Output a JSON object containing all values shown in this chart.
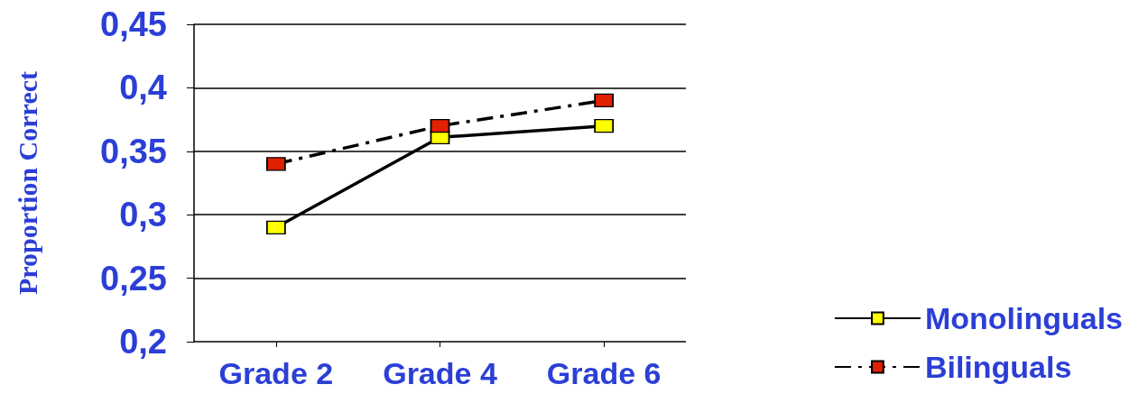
{
  "chart_data": {
    "type": "line",
    "ylabel": "Proportion Correct",
    "categories": [
      "Grade 2",
      "Grade 4",
      "Grade 6"
    ],
    "series": [
      {
        "name": "Monolinguals",
        "color": "#ffff00",
        "values": [
          0.29,
          0.361,
          0.37
        ],
        "line_style": "solid"
      },
      {
        "name": "Bilinguals",
        "color": "#e02000",
        "values": [
          0.34,
          0.37,
          0.39
        ],
        "line_style": "dashed"
      }
    ],
    "ylim": [
      0.2,
      0.45
    ],
    "yticks": [
      {
        "value": 0.2,
        "label": "0,2"
      },
      {
        "value": 0.25,
        "label": "0,25"
      },
      {
        "value": 0.3,
        "label": "0,3"
      },
      {
        "value": 0.35,
        "label": "0,35"
      },
      {
        "value": 0.4,
        "label": "0,4"
      },
      {
        "value": 0.45,
        "label": "0,45"
      }
    ],
    "grid": "y",
    "legend": "bottom right",
    "marker": "square"
  }
}
